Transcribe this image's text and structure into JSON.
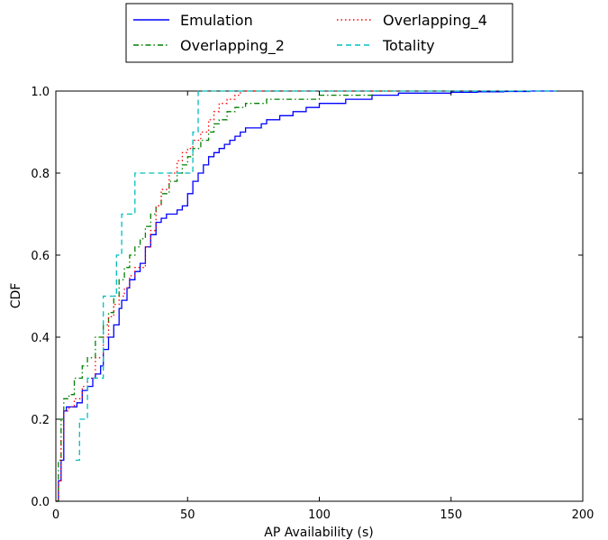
{
  "chart_data": {
    "type": "line",
    "title": "",
    "xlabel": "AP Availability (s)",
    "ylabel": "CDF",
    "xlim": [
      0,
      200
    ],
    "ylim": [
      0,
      1.0
    ],
    "xticks": [
      "0",
      "50",
      "100",
      "150",
      "200"
    ],
    "yticks": [
      "0.0",
      "0.2",
      "0.4",
      "0.6",
      "0.8",
      "1.0"
    ],
    "grid": false,
    "legend_position": "top-center, outside plot",
    "series": [
      {
        "name": "Emulation",
        "color": "#0000ff",
        "style": "solid",
        "x": [
          0,
          1,
          2,
          3,
          4,
          6,
          8,
          10,
          12,
          14,
          15,
          17,
          18,
          20,
          22,
          24,
          25,
          27,
          28,
          30,
          32,
          34,
          36,
          38,
          40,
          42,
          44,
          46,
          48,
          50,
          52,
          54,
          56,
          58,
          60,
          62,
          64,
          66,
          68,
          70,
          72,
          75,
          78,
          80,
          85,
          90,
          95,
          100,
          105,
          110,
          115,
          120,
          125,
          130,
          140,
          150,
          160,
          170,
          180,
          190
        ],
        "y": [
          0.0,
          0.05,
          0.1,
          0.22,
          0.23,
          0.23,
          0.24,
          0.27,
          0.28,
          0.3,
          0.31,
          0.33,
          0.37,
          0.4,
          0.43,
          0.47,
          0.49,
          0.52,
          0.54,
          0.56,
          0.58,
          0.62,
          0.65,
          0.68,
          0.69,
          0.7,
          0.7,
          0.71,
          0.72,
          0.75,
          0.78,
          0.8,
          0.82,
          0.84,
          0.85,
          0.86,
          0.87,
          0.88,
          0.89,
          0.9,
          0.91,
          0.91,
          0.92,
          0.93,
          0.94,
          0.95,
          0.96,
          0.97,
          0.97,
          0.98,
          0.98,
          0.99,
          0.99,
          0.995,
          0.995,
          0.997,
          0.998,
          0.999,
          1.0,
          1.0
        ]
      },
      {
        "name": "Overlapping_2",
        "color": "#008000",
        "style": "dashdot",
        "x": [
          0,
          1,
          2,
          3,
          5,
          7,
          10,
          12,
          15,
          18,
          20,
          22,
          24,
          26,
          28,
          30,
          32,
          34,
          36,
          38,
          40,
          43,
          46,
          48,
          50,
          52,
          55,
          58,
          60,
          62,
          65,
          68,
          72,
          75,
          80,
          90,
          100,
          110,
          120,
          130
        ],
        "y": [
          0.0,
          0.1,
          0.2,
          0.25,
          0.26,
          0.3,
          0.33,
          0.35,
          0.4,
          0.43,
          0.46,
          0.5,
          0.54,
          0.57,
          0.6,
          0.62,
          0.64,
          0.67,
          0.7,
          0.72,
          0.75,
          0.78,
          0.8,
          0.82,
          0.84,
          0.86,
          0.88,
          0.9,
          0.92,
          0.93,
          0.95,
          0.96,
          0.97,
          0.97,
          0.98,
          0.98,
          0.99,
          0.99,
          1.0,
          1.0
        ]
      },
      {
        "name": "Overlapping_4",
        "color": "#ff0000",
        "style": "dotted",
        "x": [
          0,
          1,
          2,
          3,
          5,
          7,
          10,
          12,
          15,
          18,
          20,
          22,
          24,
          26,
          28,
          30,
          32,
          34,
          36,
          38,
          40,
          43,
          46,
          48,
          50,
          52,
          55,
          58,
          60,
          62,
          65,
          68,
          70,
          72,
          75,
          80,
          90,
          100,
          110,
          120,
          130
        ],
        "y": [
          0.0,
          0.05,
          0.15,
          0.22,
          0.23,
          0.25,
          0.28,
          0.3,
          0.35,
          0.4,
          0.45,
          0.48,
          0.5,
          0.52,
          0.55,
          0.57,
          0.57,
          0.62,
          0.66,
          0.72,
          0.76,
          0.8,
          0.83,
          0.85,
          0.86,
          0.88,
          0.9,
          0.93,
          0.95,
          0.97,
          0.98,
          0.99,
          1.0,
          1.0,
          1.0,
          1.0,
          1.0,
          1.0,
          1.0,
          1.0,
          1.0
        ]
      },
      {
        "name": "Totality",
        "color": "#00bfbf",
        "style": "dashed",
        "x": [
          7.5,
          9,
          12,
          18,
          23,
          25,
          30,
          45,
          52,
          54,
          190
        ],
        "y": [
          0.1,
          0.2,
          0.3,
          0.5,
          0.6,
          0.7,
          0.8,
          0.8,
          0.9,
          1.0,
          1.0
        ]
      }
    ]
  }
}
